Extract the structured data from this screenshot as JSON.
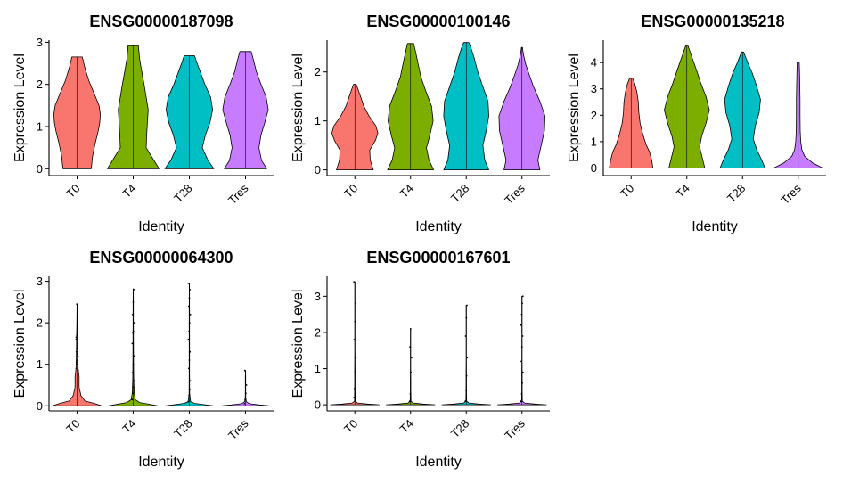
{
  "chart_data": [
    {
      "type": "violin",
      "title": "ENSG00000187098",
      "xlabel": "Identity",
      "ylabel": "Expression Level",
      "categories": [
        "T0",
        "T4",
        "T28",
        "Tres"
      ],
      "yticks": [
        0,
        1,
        2,
        3
      ],
      "ylim": [
        -0.12,
        3.05
      ],
      "violins": [
        {
          "max": 2.65,
          "profile": [
            [
              0,
              0.55
            ],
            [
              0.3,
              0.6
            ],
            [
              0.6,
              0.7
            ],
            [
              0.9,
              0.82
            ],
            [
              1.1,
              0.88
            ],
            [
              1.3,
              0.9
            ],
            [
              1.5,
              0.85
            ],
            [
              1.8,
              0.65
            ],
            [
              2.1,
              0.45
            ],
            [
              2.4,
              0.3
            ],
            [
              2.65,
              0.2
            ]
          ]
        },
        {
          "max": 2.92,
          "profile": [
            [
              0,
              1.0
            ],
            [
              0.25,
              0.75
            ],
            [
              0.5,
              0.5
            ],
            [
              0.8,
              0.52
            ],
            [
              1.1,
              0.55
            ],
            [
              1.4,
              0.58
            ],
            [
              1.7,
              0.5
            ],
            [
              2.0,
              0.42
            ],
            [
              2.3,
              0.33
            ],
            [
              2.6,
              0.25
            ],
            [
              2.92,
              0.2
            ]
          ]
        },
        {
          "max": 2.68,
          "profile": [
            [
              0,
              0.95
            ],
            [
              0.2,
              0.72
            ],
            [
              0.5,
              0.5
            ],
            [
              0.8,
              0.62
            ],
            [
              1.1,
              0.8
            ],
            [
              1.4,
              0.9
            ],
            [
              1.7,
              0.82
            ],
            [
              2.0,
              0.6
            ],
            [
              2.3,
              0.42
            ],
            [
              2.5,
              0.3
            ],
            [
              2.68,
              0.2
            ]
          ]
        },
        {
          "max": 2.78,
          "profile": [
            [
              0,
              0.82
            ],
            [
              0.2,
              0.62
            ],
            [
              0.5,
              0.52
            ],
            [
              0.8,
              0.6
            ],
            [
              1.1,
              0.75
            ],
            [
              1.4,
              0.88
            ],
            [
              1.7,
              0.8
            ],
            [
              2.0,
              0.6
            ],
            [
              2.3,
              0.42
            ],
            [
              2.6,
              0.3
            ],
            [
              2.78,
              0.22
            ]
          ]
        }
      ]
    },
    {
      "type": "violin",
      "title": "ENSG00000100146",
      "xlabel": "Identity",
      "ylabel": "Expression Level",
      "categories": [
        "T0",
        "T4",
        "T28",
        "Tres"
      ],
      "yticks": [
        0,
        1,
        2
      ],
      "ylim": [
        -0.08,
        2.65
      ],
      "violins": [
        {
          "max": 1.75,
          "profile": [
            [
              0,
              0.72
            ],
            [
              0.2,
              0.6
            ],
            [
              0.4,
              0.58
            ],
            [
              0.6,
              0.8
            ],
            [
              0.75,
              0.9
            ],
            [
              0.9,
              0.82
            ],
            [
              1.1,
              0.55
            ],
            [
              1.3,
              0.35
            ],
            [
              1.5,
              0.22
            ],
            [
              1.65,
              0.12
            ],
            [
              1.75,
              0.05
            ]
          ]
        },
        {
          "max": 2.58,
          "profile": [
            [
              0,
              0.9
            ],
            [
              0.2,
              0.72
            ],
            [
              0.45,
              0.62
            ],
            [
              0.7,
              0.75
            ],
            [
              1.0,
              0.88
            ],
            [
              1.3,
              0.82
            ],
            [
              1.6,
              0.6
            ],
            [
              1.9,
              0.4
            ],
            [
              2.2,
              0.28
            ],
            [
              2.45,
              0.18
            ],
            [
              2.58,
              0.12
            ]
          ]
        },
        {
          "max": 2.6,
          "profile": [
            [
              0,
              0.88
            ],
            [
              0.2,
              0.72
            ],
            [
              0.5,
              0.65
            ],
            [
              0.8,
              0.78
            ],
            [
              1.1,
              0.88
            ],
            [
              1.4,
              0.85
            ],
            [
              1.7,
              0.65
            ],
            [
              2.0,
              0.45
            ],
            [
              2.3,
              0.3
            ],
            [
              2.5,
              0.18
            ],
            [
              2.6,
              0.1
            ]
          ]
        },
        {
          "max": 2.5,
          "profile": [
            [
              0,
              0.7
            ],
            [
              0.2,
              0.62
            ],
            [
              0.5,
              0.75
            ],
            [
              0.8,
              0.88
            ],
            [
              1.1,
              0.9
            ],
            [
              1.4,
              0.7
            ],
            [
              1.7,
              0.45
            ],
            [
              1.95,
              0.28
            ],
            [
              2.15,
              0.15
            ],
            [
              2.35,
              0.06
            ],
            [
              2.5,
              0.02
            ]
          ]
        }
      ]
    },
    {
      "type": "violin",
      "title": "ENSG00000135218",
      "xlabel": "Identity",
      "ylabel": "Expression Level",
      "categories": [
        "T0",
        "T4",
        "T28",
        "Tres"
      ],
      "yticks": [
        0,
        1,
        2,
        3,
        4
      ],
      "ylim": [
        -0.22,
        4.85
      ],
      "violins": [
        {
          "max": 3.4,
          "profile": [
            [
              0,
              0.85
            ],
            [
              0.3,
              0.8
            ],
            [
              0.6,
              0.72
            ],
            [
              0.9,
              0.58
            ],
            [
              1.3,
              0.45
            ],
            [
              1.7,
              0.35
            ],
            [
              2.1,
              0.3
            ],
            [
              2.5,
              0.28
            ],
            [
              2.9,
              0.22
            ],
            [
              3.2,
              0.14
            ],
            [
              3.4,
              0.06
            ]
          ]
        },
        {
          "max": 4.65,
          "profile": [
            [
              0,
              0.7
            ],
            [
              0.4,
              0.6
            ],
            [
              0.8,
              0.5
            ],
            [
              1.2,
              0.58
            ],
            [
              1.7,
              0.75
            ],
            [
              2.2,
              0.88
            ],
            [
              2.7,
              0.75
            ],
            [
              3.2,
              0.55
            ],
            [
              3.7,
              0.38
            ],
            [
              4.2,
              0.2
            ],
            [
              4.65,
              0.04
            ]
          ]
        },
        {
          "max": 4.4,
          "profile": [
            [
              0,
              0.88
            ],
            [
              0.3,
              0.75
            ],
            [
              0.7,
              0.55
            ],
            [
              1.1,
              0.42
            ],
            [
              1.6,
              0.5
            ],
            [
              2.1,
              0.65
            ],
            [
              2.6,
              0.7
            ],
            [
              3.1,
              0.55
            ],
            [
              3.6,
              0.38
            ],
            [
              4.0,
              0.2
            ],
            [
              4.4,
              0.04
            ]
          ]
        },
        {
          "max": 4.0,
          "profile": [
            [
              0,
              0.95
            ],
            [
              0.2,
              0.55
            ],
            [
              0.45,
              0.25
            ],
            [
              0.7,
              0.14
            ],
            [
              1.0,
              0.1
            ],
            [
              1.4,
              0.08
            ],
            [
              2.0,
              0.07
            ],
            [
              2.6,
              0.07
            ],
            [
              3.2,
              0.06
            ],
            [
              3.7,
              0.05
            ],
            [
              4.0,
              0.04
            ]
          ]
        }
      ]
    },
    {
      "type": "violin",
      "title": "ENSG00000064300",
      "xlabel": "Identity",
      "ylabel": "Expression Level",
      "categories": [
        "T0",
        "T4",
        "T28",
        "Tres"
      ],
      "yticks": [
        0,
        1,
        2,
        3
      ],
      "ylim": [
        -0.08,
        3.12
      ],
      "violins": [
        {
          "max": 2.45,
          "profile": [
            [
              0,
              0.95
            ],
            [
              0.05,
              0.7
            ],
            [
              0.12,
              0.3
            ],
            [
              0.25,
              0.15
            ],
            [
              0.45,
              0.08
            ],
            [
              0.7,
              0.08
            ],
            [
              0.9,
              0.04
            ],
            [
              1.2,
              0.03
            ],
            [
              1.6,
              0.02
            ],
            [
              2.0,
              0.01
            ],
            [
              2.45,
              0.005
            ]
          ]
        },
        {
          "max": 2.82,
          "profile": [
            [
              0,
              0.95
            ],
            [
              0.04,
              0.6
            ],
            [
              0.08,
              0.25
            ],
            [
              0.15,
              0.08
            ],
            [
              0.3,
              0.04
            ],
            [
              0.6,
              0.02
            ],
            [
              1.0,
              0.015
            ],
            [
              1.5,
              0.01
            ],
            [
              2.0,
              0.008
            ],
            [
              2.4,
              0.006
            ],
            [
              2.82,
              0.005
            ]
          ]
        },
        {
          "max": 2.95,
          "profile": [
            [
              0,
              0.92
            ],
            [
              0.03,
              0.55
            ],
            [
              0.06,
              0.2
            ],
            [
              0.1,
              0.05
            ],
            [
              0.3,
              0.01
            ],
            [
              0.8,
              0.008
            ],
            [
              1.3,
              0.008
            ],
            [
              1.8,
              0.007
            ],
            [
              2.3,
              0.006
            ],
            [
              2.6,
              0.005
            ],
            [
              2.95,
              0.005
            ]
          ]
        },
        {
          "max": 0.85,
          "profile": [
            [
              0,
              0.92
            ],
            [
              0.02,
              0.55
            ],
            [
              0.05,
              0.15
            ],
            [
              0.1,
              0.03
            ],
            [
              0.2,
              0.01
            ],
            [
              0.35,
              0.008
            ],
            [
              0.5,
              0.007
            ],
            [
              0.6,
              0.006
            ],
            [
              0.7,
              0.006
            ],
            [
              0.8,
              0.005
            ],
            [
              0.85,
              0.004
            ]
          ]
        }
      ]
    },
    {
      "type": "violin",
      "title": "ENSG00000167601",
      "xlabel": "Identity",
      "ylabel": "Expression Level",
      "categories": [
        "T0",
        "T4",
        "T28",
        "Tres"
      ],
      "yticks": [
        0,
        1,
        2,
        3
      ],
      "ylim": [
        -0.12,
        3.55
      ],
      "violins": [
        {
          "max": 3.4,
          "profile": [
            [
              0,
              0.95
            ],
            [
              0.02,
              0.5
            ],
            [
              0.05,
              0.1
            ],
            [
              0.1,
              0.015
            ],
            [
              0.5,
              0.008
            ],
            [
              1.0,
              0.007
            ],
            [
              1.5,
              0.006
            ],
            [
              2.0,
              0.006
            ],
            [
              2.5,
              0.005
            ],
            [
              3.0,
              0.005
            ],
            [
              3.4,
              0.004
            ]
          ]
        },
        {
          "max": 2.1,
          "profile": [
            [
              0,
              0.95
            ],
            [
              0.02,
              0.5
            ],
            [
              0.05,
              0.1
            ],
            [
              0.1,
              0.015
            ],
            [
              0.4,
              0.008
            ],
            [
              0.7,
              0.007
            ],
            [
              1.0,
              0.006
            ],
            [
              1.3,
              0.006
            ],
            [
              1.6,
              0.005
            ],
            [
              1.9,
              0.005
            ],
            [
              2.1,
              0.004
            ]
          ]
        },
        {
          "max": 2.75,
          "profile": [
            [
              0,
              0.95
            ],
            [
              0.02,
              0.5
            ],
            [
              0.05,
              0.1
            ],
            [
              0.1,
              0.015
            ],
            [
              0.4,
              0.008
            ],
            [
              0.8,
              0.007
            ],
            [
              1.2,
              0.006
            ],
            [
              1.6,
              0.006
            ],
            [
              2.0,
              0.005
            ],
            [
              2.4,
              0.005
            ],
            [
              2.75,
              0.004
            ]
          ]
        },
        {
          "max": 3.0,
          "profile": [
            [
              0,
              0.95
            ],
            [
              0.02,
              0.5
            ],
            [
              0.05,
              0.1
            ],
            [
              0.1,
              0.015
            ],
            [
              0.4,
              0.008
            ],
            [
              0.8,
              0.007
            ],
            [
              1.2,
              0.006
            ],
            [
              1.7,
              0.006
            ],
            [
              2.2,
              0.005
            ],
            [
              2.6,
              0.005
            ],
            [
              3.0,
              0.004
            ]
          ]
        }
      ]
    }
  ],
  "colors": {
    "T0": "#F8766D",
    "T4": "#7CAE00",
    "T28": "#00BFC4",
    "Tres": "#C77CFF"
  },
  "points": [
    {
      "panel": 3,
      "group": 0,
      "values": [
        0.9,
        1.0,
        1.1,
        1.2,
        1.3,
        1.4,
        1.5,
        1.6,
        1.7,
        1.75,
        0.85,
        1.05,
        1.25,
        1.45,
        1.65,
        2.45
      ]
    },
    {
      "panel": 3,
      "group": 1,
      "values": [
        0.15,
        0.3,
        0.45,
        0.6,
        0.8,
        1.0,
        1.2,
        1.5,
        1.75,
        1.8,
        2.0,
        2.2,
        2.5,
        2.8
      ]
    },
    {
      "panel": 3,
      "group": 2,
      "values": [
        0.1,
        0.25,
        0.4,
        0.6,
        0.9,
        1.1,
        1.3,
        1.6,
        1.8,
        2.0,
        2.2,
        2.4,
        2.6,
        2.8,
        2.95
      ]
    },
    {
      "panel": 3,
      "group": 3,
      "values": [
        0.05,
        0.15,
        0.3,
        0.5,
        0.85
      ]
    },
    {
      "panel": 4,
      "group": 0,
      "values": [
        0.2,
        0.45,
        0.9,
        1.3,
        1.8,
        2.3,
        2.8,
        3.4
      ]
    },
    {
      "panel": 4,
      "group": 1,
      "values": [
        0.1,
        0.3,
        0.9,
        1.3,
        1.6,
        2.1
      ]
    },
    {
      "panel": 4,
      "group": 2,
      "values": [
        0.1,
        0.4,
        0.8,
        1.3,
        1.9,
        2.4,
        2.75
      ]
    },
    {
      "panel": 4,
      "group": 3,
      "values": [
        0.1,
        0.3,
        0.6,
        0.9,
        1.2,
        1.6,
        1.9,
        2.2,
        2.5,
        2.8,
        3.0
      ]
    }
  ]
}
